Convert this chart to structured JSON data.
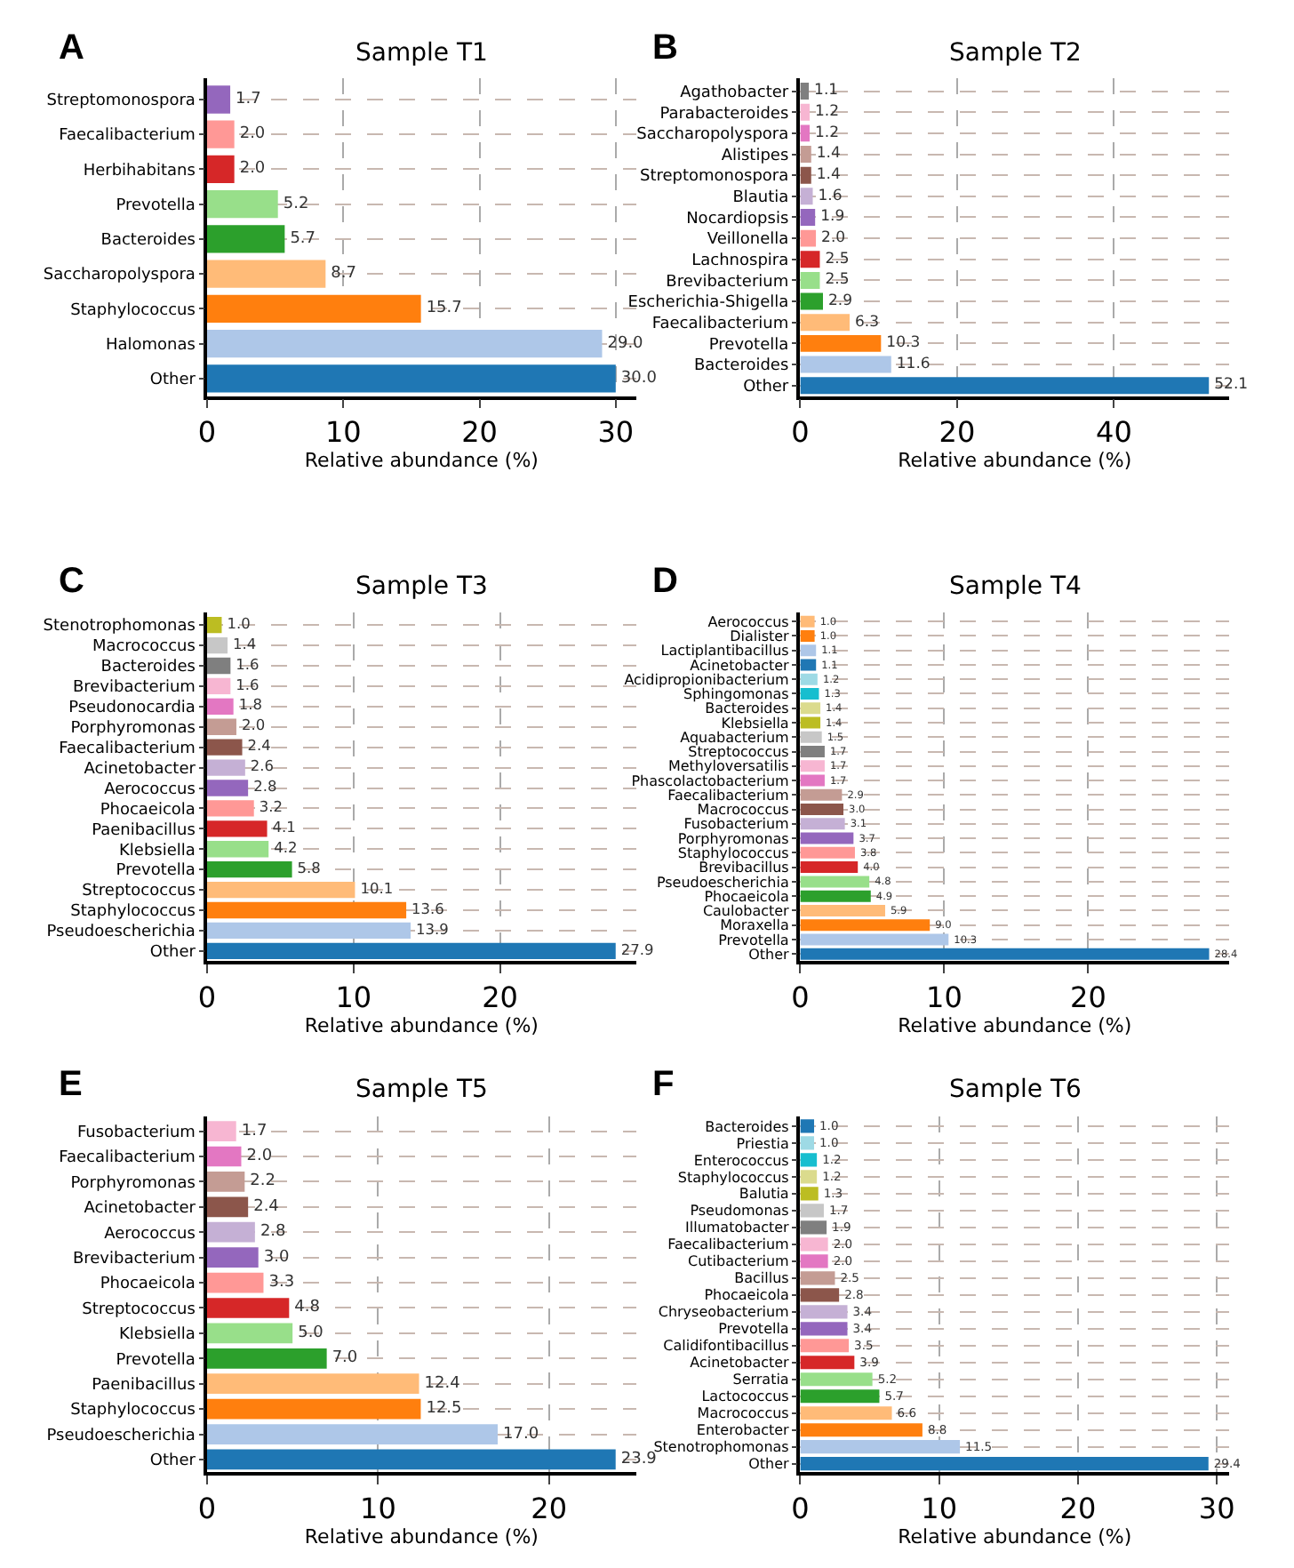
{
  "chart_data": [
    {
      "type": "bar",
      "orientation": "horizontal",
      "title": "Sample T1",
      "xlabel": "Relative abundance (%)",
      "annotations": [
        "A"
      ],
      "grid": true,
      "xlim": [
        0,
        31.5
      ],
      "xticks": [
        0,
        10,
        20,
        30
      ],
      "categories": [
        "Streptomonospora",
        "Faecalibacterium",
        "Herbihabitans",
        "Prevotella",
        "Bacteroides",
        "Saccharopolyspora",
        "Staphylococcus",
        "Halomonas",
        "Other"
      ],
      "values": [
        1.7,
        2.0,
        2.0,
        5.2,
        5.7,
        8.7,
        15.7,
        29.0,
        30.0
      ],
      "value_labels": [
        "1.7",
        "2.0",
        "2.0",
        "5.2",
        "5.7",
        "8.7",
        "15.7",
        "29.0",
        "30.0"
      ],
      "colors": [
        "#9467bd",
        "#ff9896",
        "#d62728",
        "#98df8a",
        "#2ca02c",
        "#ffbb78",
        "#ff7f0e",
        "#aec7e8",
        "#1f77b4"
      ]
    },
    {
      "type": "bar",
      "orientation": "horizontal",
      "title": "Sample T2",
      "xlabel": "Relative abundance (%)",
      "annotations": [
        "B"
      ],
      "grid": true,
      "xlim": [
        0,
        54.7
      ],
      "xticks": [
        0,
        20,
        40
      ],
      "categories": [
        "Agathobacter",
        "Parabacteroides",
        "Saccharopolyspora",
        "Alistipes",
        "Streptomonospora",
        "Blautia",
        "Nocardiopsis",
        "Veillonella",
        "Lachnospira",
        "Brevibacterium",
        "Escherichia-Shigella",
        "Faecalibacterium",
        "Prevotella",
        "Bacteroides",
        "Other"
      ],
      "values": [
        1.1,
        1.2,
        1.2,
        1.4,
        1.4,
        1.6,
        1.9,
        2.0,
        2.5,
        2.5,
        2.9,
        6.3,
        10.3,
        11.6,
        52.1
      ],
      "value_labels": [
        "1.1",
        "1.2",
        "1.2",
        "1.4",
        "1.4",
        "1.6",
        "1.9",
        "2.0",
        "2.5",
        "2.5",
        "2.9",
        "6.3",
        "10.3",
        "11.6",
        "52.1"
      ],
      "colors": [
        "#7f7f7f",
        "#f7b6d2",
        "#e377c2",
        "#c49c94",
        "#8c564b",
        "#c5b0d5",
        "#9467bd",
        "#ff9896",
        "#d62728",
        "#98df8a",
        "#2ca02c",
        "#ffbb78",
        "#ff7f0e",
        "#aec7e8",
        "#1f77b4"
      ]
    },
    {
      "type": "bar",
      "orientation": "horizontal",
      "title": "Sample T3",
      "xlabel": "Relative abundance (%)",
      "annotations": [
        "C"
      ],
      "grid": true,
      "xlim": [
        0,
        29.3
      ],
      "xticks": [
        0,
        10,
        20
      ],
      "categories": [
        "Stenotrophomonas",
        "Macrococcus",
        "Bacteroides",
        "Brevibacterium",
        "Pseudonocardia",
        "Porphyromonas",
        "Faecalibacterium",
        "Acinetobacter",
        "Aerococcus",
        "Phocaeicola",
        "Paenibacillus",
        "Klebsiella",
        "Prevotella",
        "Streptococcus",
        "Staphylococcus",
        "Pseudoescherichia",
        "Other"
      ],
      "values": [
        1.0,
        1.4,
        1.6,
        1.6,
        1.8,
        2.0,
        2.4,
        2.6,
        2.8,
        3.2,
        4.1,
        4.2,
        5.8,
        10.1,
        13.6,
        13.9,
        27.9
      ],
      "value_labels": [
        "1.0",
        "1.4",
        "1.6",
        "1.6",
        "1.8",
        "2.0",
        "2.4",
        "2.6",
        "2.8",
        "3.2",
        "4.1",
        "4.2",
        "5.8",
        "10.1",
        "13.6",
        "13.9",
        "27.9"
      ],
      "colors": [
        "#bcbd22",
        "#c7c7c7",
        "#7f7f7f",
        "#f7b6d2",
        "#e377c2",
        "#c49c94",
        "#8c564b",
        "#c5b0d5",
        "#9467bd",
        "#ff9896",
        "#d62728",
        "#98df8a",
        "#2ca02c",
        "#ffbb78",
        "#ff7f0e",
        "#aec7e8",
        "#1f77b4"
      ]
    },
    {
      "type": "bar",
      "orientation": "horizontal",
      "title": "Sample T4",
      "xlabel": "Relative abundance (%)",
      "annotations": [
        "D"
      ],
      "grid": true,
      "xlim": [
        0,
        29.8
      ],
      "xticks": [
        0,
        10,
        20
      ],
      "categories": [
        "Aerococcus",
        "Dialister",
        "Lactiplantibacillus",
        "Acinetobacter",
        "Acidipropionibacterium",
        "Sphingomonas",
        "Bacteroides",
        "Klebsiella",
        "Aquabacterium",
        "Streptococcus",
        "Methyloversatilis",
        "Phascolactobacterium",
        "Faecalibacterium",
        "Macrococcus",
        "Fusobacterium",
        "Porphyromonas",
        "Staphylococcus",
        "Brevibacillus",
        "Pseudoescherichia",
        "Phocaeicola",
        "Caulobacter",
        "Moraxella",
        "Prevotella",
        "Other"
      ],
      "values": [
        1.0,
        1.0,
        1.1,
        1.1,
        1.2,
        1.3,
        1.4,
        1.4,
        1.5,
        1.7,
        1.7,
        1.7,
        2.9,
        3.0,
        3.1,
        3.7,
        3.8,
        4.0,
        4.8,
        4.9,
        5.9,
        9.0,
        10.3,
        28.4
      ],
      "value_labels": [
        "1.0",
        "1.0",
        "1.1",
        "1.1",
        "1.2",
        "1.3",
        "1.4",
        "1.4",
        "1.5",
        "1.7",
        "1.7",
        "1.7",
        "2.9",
        "3.0",
        "3.1",
        "3.7",
        "3.8",
        "4.0",
        "4.8",
        "4.9",
        "5.9",
        "9.0",
        "10.3",
        "28.4"
      ],
      "colors": [
        "#ffbb78",
        "#ff7f0e",
        "#aec7e8",
        "#1f77b4",
        "#9edae5",
        "#17becf",
        "#dbdb8d",
        "#bcbd22",
        "#c7c7c7",
        "#7f7f7f",
        "#f7b6d2",
        "#e377c2",
        "#c49c94",
        "#8c564b",
        "#c5b0d5",
        "#9467bd",
        "#ff9896",
        "#d62728",
        "#98df8a",
        "#2ca02c",
        "#ffbb78",
        "#ff7f0e",
        "#aec7e8",
        "#1f77b4"
      ]
    },
    {
      "type": "bar",
      "orientation": "horizontal",
      "title": "Sample T5",
      "xlabel": "Relative abundance (%)",
      "annotations": [
        "E"
      ],
      "grid": true,
      "xlim": [
        0,
        25.1
      ],
      "xticks": [
        0,
        10,
        20
      ],
      "categories": [
        "Fusobacterium",
        "Faecalibacterium",
        "Porphyromonas",
        "Acinetobacter",
        "Aerococcus",
        "Brevibacterium",
        "Phocaeicola",
        "Streptococcus",
        "Klebsiella",
        "Prevotella",
        "Paenibacillus",
        "Staphylococcus",
        "Pseudoescherichia",
        "Other"
      ],
      "values": [
        1.7,
        2.0,
        2.2,
        2.4,
        2.8,
        3.0,
        3.3,
        4.8,
        5.0,
        7.0,
        12.4,
        12.5,
        17.0,
        23.9
      ],
      "value_labels": [
        "1.7",
        "2.0",
        "2.2",
        "2.4",
        "2.8",
        "3.0",
        "3.3",
        "4.8",
        "5.0",
        "7.0",
        "12.4",
        "12.5",
        "17.0",
        "23.9"
      ],
      "colors": [
        "#f7b6d2",
        "#e377c2",
        "#c49c94",
        "#8c564b",
        "#c5b0d5",
        "#9467bd",
        "#ff9896",
        "#d62728",
        "#98df8a",
        "#2ca02c",
        "#ffbb78",
        "#ff7f0e",
        "#aec7e8",
        "#1f77b4"
      ]
    },
    {
      "type": "bar",
      "orientation": "horizontal",
      "title": "Sample T6",
      "xlabel": "Relative abundance (%)",
      "annotations": [
        "F"
      ],
      "grid": true,
      "xlim": [
        0,
        30.9
      ],
      "xticks": [
        0,
        10,
        20,
        30
      ],
      "categories": [
        "Bacteroides",
        "Priestia",
        "Enterococcus",
        "Staphylococcus",
        "Balutia",
        "Pseudomonas",
        "Illumatobacter",
        "Faecalibacterium",
        "Cutibacterium",
        "Bacillus",
        "Phocaeicola",
        "Chryseobacterium",
        "Prevotella",
        "Calidifontibacillus",
        "Acinetobacter",
        "Serratia",
        "Lactococcus",
        "Macrococcus",
        "Enterobacter",
        "Stenotrophomonas",
        "Other"
      ],
      "values": [
        1.0,
        1.0,
        1.2,
        1.2,
        1.3,
        1.7,
        1.9,
        2.0,
        2.0,
        2.5,
        2.8,
        3.4,
        3.4,
        3.5,
        3.9,
        5.2,
        5.7,
        6.6,
        8.8,
        11.5,
        29.4
      ],
      "value_labels": [
        "1.0",
        "1.0",
        "1.2",
        "1.2",
        "1.3",
        "1.7",
        "1.9",
        "2.0",
        "2.0",
        "2.5",
        "2.8",
        "3.4",
        "3.4",
        "3.5",
        "3.9",
        "5.2",
        "5.7",
        "6.6",
        "8.8",
        "11.5",
        "29.4"
      ],
      "colors": [
        "#1f77b4",
        "#9edae5",
        "#17becf",
        "#dbdb8d",
        "#bcbd22",
        "#c7c7c7",
        "#7f7f7f",
        "#f7b6d2",
        "#e377c2",
        "#c49c94",
        "#8c564b",
        "#c5b0d5",
        "#9467bd",
        "#ff9896",
        "#d62728",
        "#98df8a",
        "#2ca02c",
        "#ffbb78",
        "#ff7f0e",
        "#aec7e8",
        "#1f77b4"
      ]
    }
  ]
}
